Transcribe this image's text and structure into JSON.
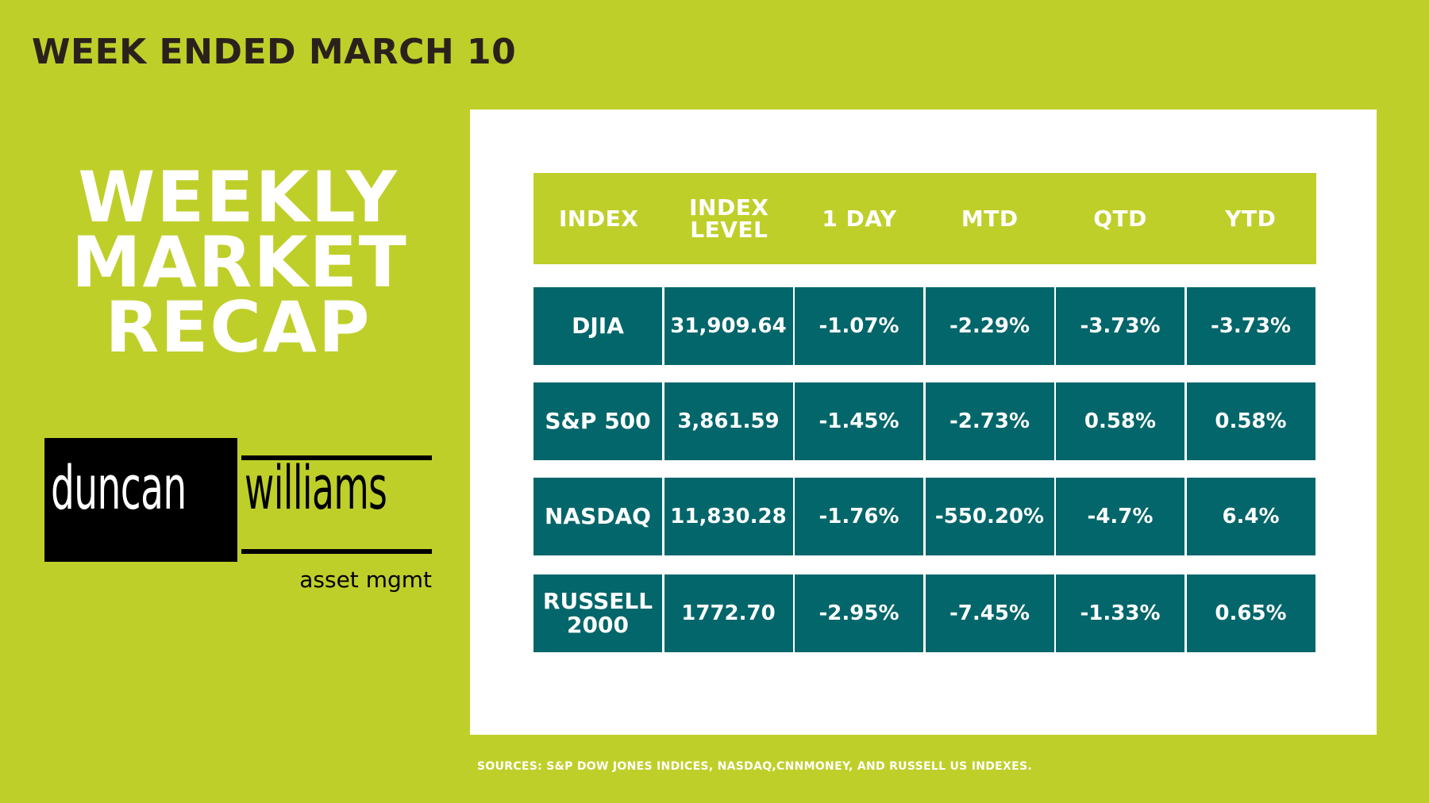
{
  "header": {
    "week_title": "WEEK ENDED MARCH 10"
  },
  "title": {
    "line1": "WEEKLY",
    "line2": "MARKET",
    "line3": "RECAP"
  },
  "logo": {
    "left_text": "duncan",
    "right_text": "williams",
    "subtitle": "asset mgmt"
  },
  "table": {
    "headers": [
      "INDEX",
      "INDEX LEVEL",
      "1 DAY",
      "MTD",
      "QTD",
      "YTD"
    ],
    "rows": [
      [
        "DJIA",
        "31,909.64",
        "-1.07%",
        "-2.29%",
        "-3.73%",
        "-3.73%"
      ],
      [
        "S&P 500",
        "3,861.59",
        "-1.45%",
        "-2.73%",
        "0.58%",
        "0.58%"
      ],
      [
        "NASDAQ",
        "11,830.28",
        "-1.76%",
        "-550.20%",
        "-4.7%",
        "6.4%"
      ],
      [
        "RUSSELL 2000",
        "1772.70",
        "-2.95%",
        "-7.45%",
        "-1.33%",
        "0.65%"
      ]
    ]
  },
  "footer": {
    "sources": "SOURCES: S&P DOW JONES INDICES, NASDAQ,CNNMONEY,  AND  RUSSELL US INDEXES."
  },
  "colors": {
    "background": "#bfcf2a",
    "row": "#03666a",
    "text_dark": "#2b211c"
  }
}
